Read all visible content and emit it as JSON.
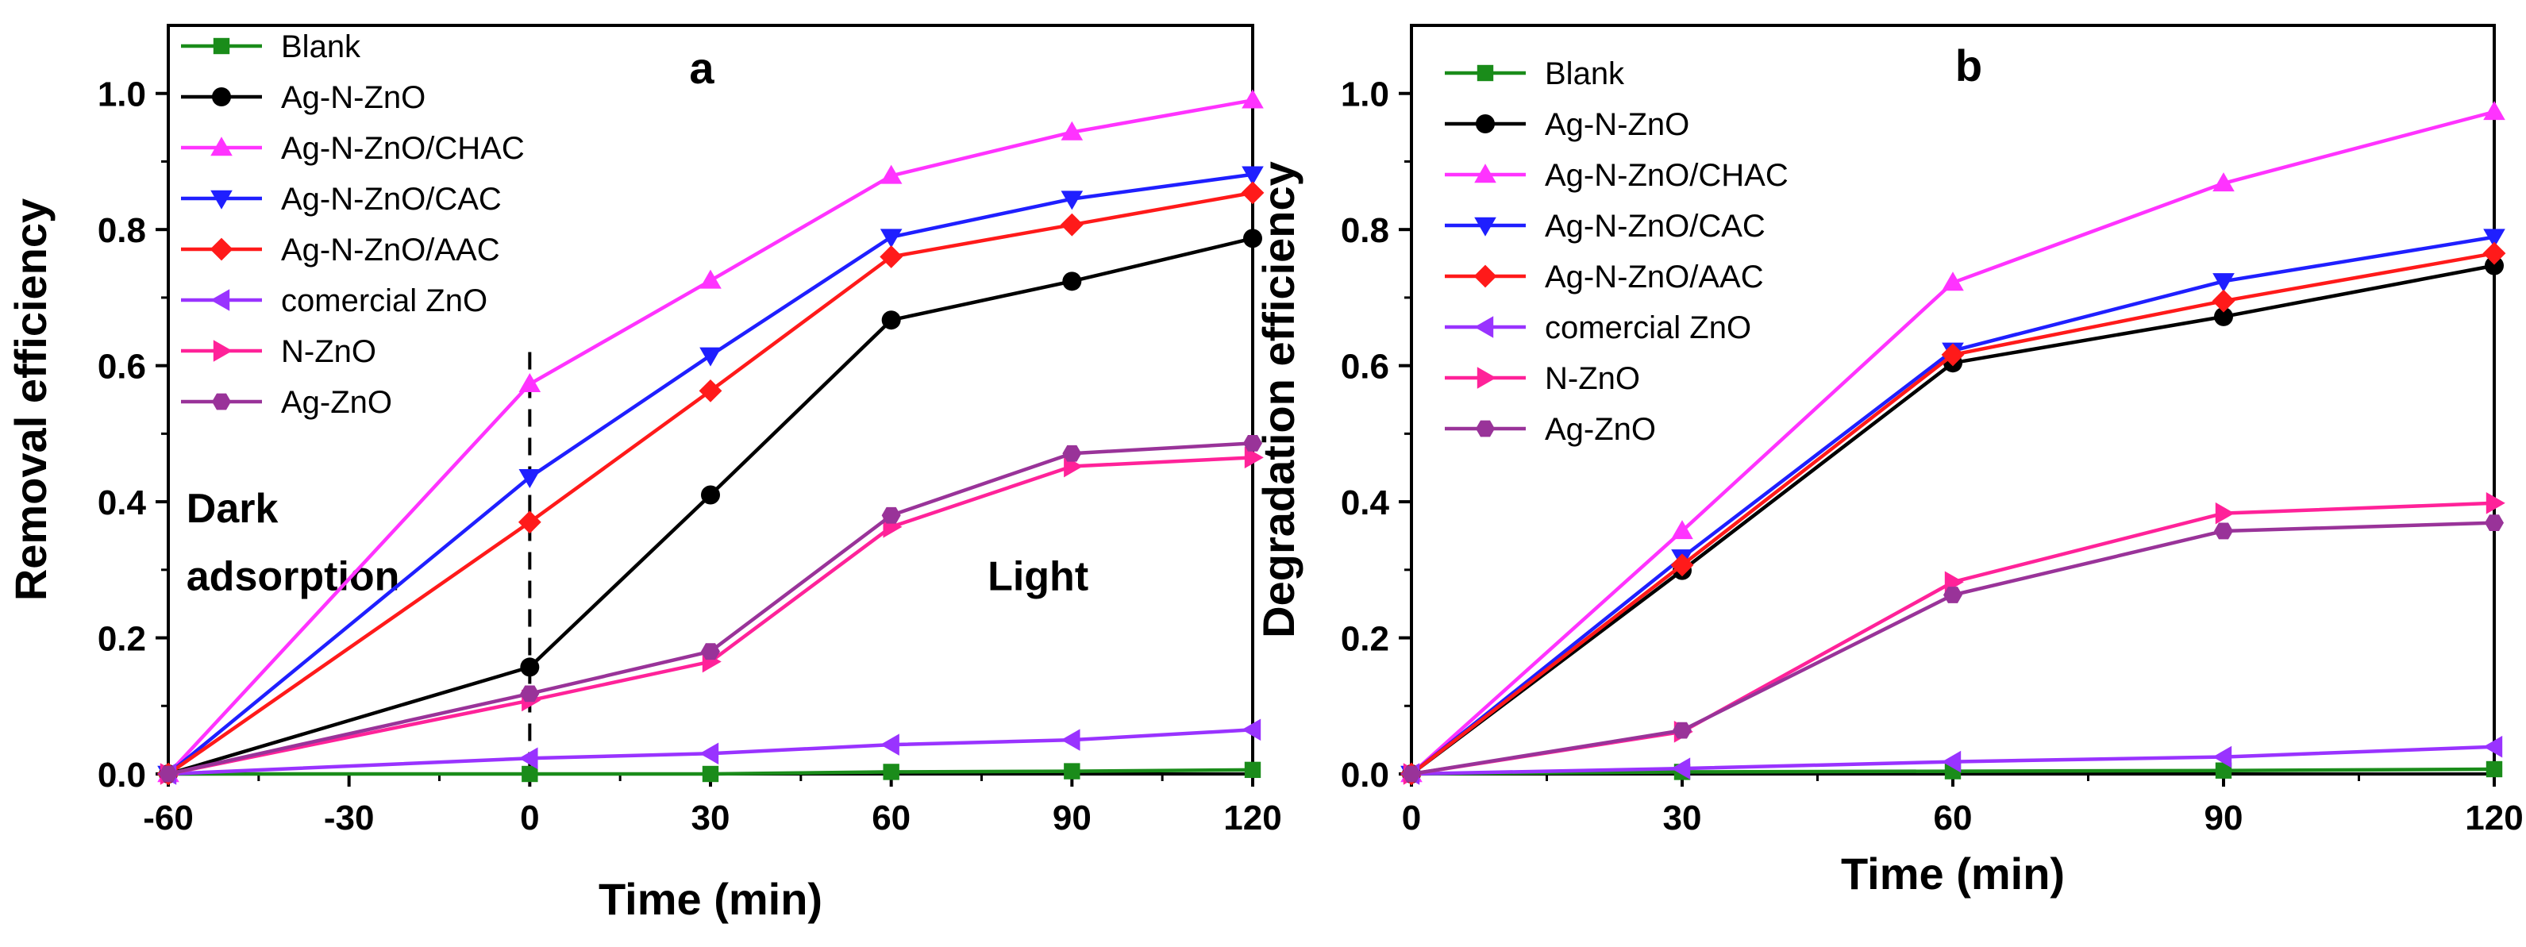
{
  "chart_data": [
    {
      "type": "line",
      "panel": "a",
      "ylabel": "Removal efficiency",
      "xlabel": "Time (min)",
      "x": [
        -60,
        0,
        30,
        60,
        90,
        120
      ],
      "xlim": [
        -60,
        120
      ],
      "ylim": [
        0,
        1.1
      ],
      "xticks": [
        "-60",
        "-30",
        "0",
        "30",
        "60",
        "90",
        "120"
      ],
      "xtick_values": [
        -60,
        -30,
        0,
        30,
        60,
        90,
        120
      ],
      "yticks": [
        "0.0",
        "0.2",
        "0.4",
        "0.6",
        "0.8",
        "1.0"
      ],
      "ytick_values": [
        0,
        0.2,
        0.4,
        0.6,
        0.8,
        1.0
      ],
      "divider_x": 0,
      "annotations": [
        {
          "text": "Dark",
          "x": -57,
          "y": 0.37
        },
        {
          "text": "adsorption",
          "x": -57,
          "y": 0.27
        },
        {
          "text": "Light",
          "x": 76,
          "y": 0.27
        }
      ],
      "series": [
        {
          "name": "Blank",
          "color": "#1a8c1a",
          "marker": "square",
          "values": [
            0.0,
            0.0,
            0.0,
            0.003,
            0.004,
            0.006
          ]
        },
        {
          "name": "Ag-N-ZnO",
          "color": "#000000",
          "marker": "circle",
          "values": [
            0.0,
            0.157,
            0.41,
            0.667,
            0.724,
            0.787
          ]
        },
        {
          "name": "Ag-N-ZnO/CHAC",
          "color": "#ff33ff",
          "marker": "triangle-up",
          "values": [
            0.0,
            0.573,
            0.725,
            0.879,
            0.943,
            0.99
          ]
        },
        {
          "name": "Ag-N-ZnO/CAC",
          "color": "#1f1fff",
          "marker": "triangle-down",
          "values": [
            0.0,
            0.436,
            0.615,
            0.789,
            0.845,
            0.881
          ]
        },
        {
          "name": "Ag-N-ZnO/AAC",
          "color": "#ff1a1a",
          "marker": "diamond",
          "values": [
            0.0,
            0.37,
            0.563,
            0.76,
            0.807,
            0.854
          ]
        },
        {
          "name": "comercial ZnO",
          "color": "#9933ff",
          "marker": "triangle-left",
          "values": [
            0.0,
            0.023,
            0.03,
            0.043,
            0.05,
            0.065
          ]
        },
        {
          "name": "N-ZnO",
          "color": "#ff2299",
          "marker": "triangle-right",
          "values": [
            0.0,
            0.108,
            0.165,
            0.363,
            0.452,
            0.465
          ]
        },
        {
          "name": "Ag-ZnO",
          "color": "#993399",
          "marker": "hexagon",
          "values": [
            0.0,
            0.118,
            0.18,
            0.38,
            0.471,
            0.486
          ]
        }
      ]
    },
    {
      "type": "line",
      "panel": "b",
      "ylabel": "Degradation efficiency",
      "xlabel": "Time (min)",
      "x": [
        0,
        30,
        60,
        90,
        120
      ],
      "xlim": [
        0,
        120
      ],
      "ylim": [
        0,
        1.1
      ],
      "xticks": [
        "0",
        "30",
        "60",
        "90",
        "120"
      ],
      "xtick_values": [
        0,
        30,
        60,
        90,
        120
      ],
      "yticks": [
        "0.0",
        "0.2",
        "0.4",
        "0.6",
        "0.8",
        "1.0"
      ],
      "ytick_values": [
        0,
        0.2,
        0.4,
        0.6,
        0.8,
        1.0
      ],
      "series": [
        {
          "name": "Blank",
          "color": "#1a8c1a",
          "marker": "square",
          "values": [
            0.0,
            0.003,
            0.004,
            0.005,
            0.007
          ]
        },
        {
          "name": "Ag-N-ZnO",
          "color": "#000000",
          "marker": "circle",
          "values": [
            0.0,
            0.299,
            0.604,
            0.672,
            0.747
          ]
        },
        {
          "name": "Ag-N-ZnO/CHAC",
          "color": "#ff33ff",
          "marker": "triangle-up",
          "values": [
            0.0,
            0.357,
            0.722,
            0.868,
            0.973
          ]
        },
        {
          "name": "Ag-N-ZnO/CAC",
          "color": "#1f1fff",
          "marker": "triangle-down",
          "values": [
            0.0,
            0.318,
            0.622,
            0.724,
            0.789
          ]
        },
        {
          "name": "Ag-N-ZnO/AAC",
          "color": "#ff1a1a",
          "marker": "diamond",
          "values": [
            0.0,
            0.307,
            0.616,
            0.695,
            0.765
          ]
        },
        {
          "name": "comercial ZnO",
          "color": "#9933ff",
          "marker": "triangle-left",
          "values": [
            0.0,
            0.008,
            0.018,
            0.025,
            0.04
          ]
        },
        {
          "name": "N-ZnO",
          "color": "#ff2299",
          "marker": "triangle-right",
          "values": [
            0.0,
            0.062,
            0.282,
            0.383,
            0.398
          ]
        },
        {
          "name": "Ag-ZnO",
          "color": "#993399",
          "marker": "hexagon",
          "values": [
            0.0,
            0.064,
            0.263,
            0.357,
            0.369
          ]
        }
      ]
    }
  ]
}
